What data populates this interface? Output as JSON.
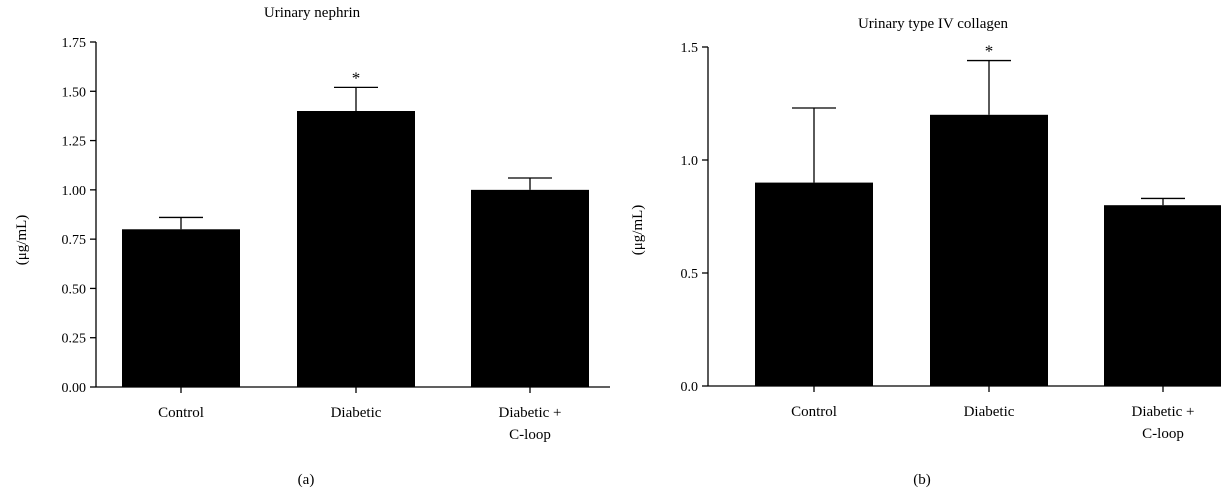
{
  "chart_data": [
    {
      "type": "bar",
      "panel_label": "(a)",
      "title": "Urinary nephrin",
      "ylabel": "(μg/mL)",
      "xlabel": "",
      "ylim": [
        0,
        1.75
      ],
      "yticks": [
        "0.00",
        "0.25",
        "0.50",
        "0.75",
        "1.00",
        "1.25",
        "1.50",
        "1.75"
      ],
      "categories": [
        [
          "Control"
        ],
        [
          "Diabetic"
        ],
        [
          "Diabetic +",
          "C-loop"
        ]
      ],
      "values": [
        0.8,
        1.4,
        1.0
      ],
      "error_upper": [
        0.86,
        1.52,
        1.06
      ],
      "significance": [
        "",
        "*",
        ""
      ],
      "bar_color": "#000000"
    },
    {
      "type": "bar",
      "panel_label": "(b)",
      "title": "Urinary type IV collagen",
      "ylabel": "(μg/mL)",
      "xlabel": "",
      "ylim": [
        0,
        1.5
      ],
      "yticks": [
        "0.0",
        "0.5",
        "1.0",
        "1.5"
      ],
      "categories": [
        [
          "Control"
        ],
        [
          "Diabetic"
        ],
        [
          "Diabetic +",
          "C-loop"
        ]
      ],
      "values": [
        0.9,
        1.2,
        0.8
      ],
      "error_upper": [
        1.23,
        1.44,
        0.83
      ],
      "significance": [
        "",
        "*",
        ""
      ],
      "bar_color": "#000000"
    }
  ]
}
